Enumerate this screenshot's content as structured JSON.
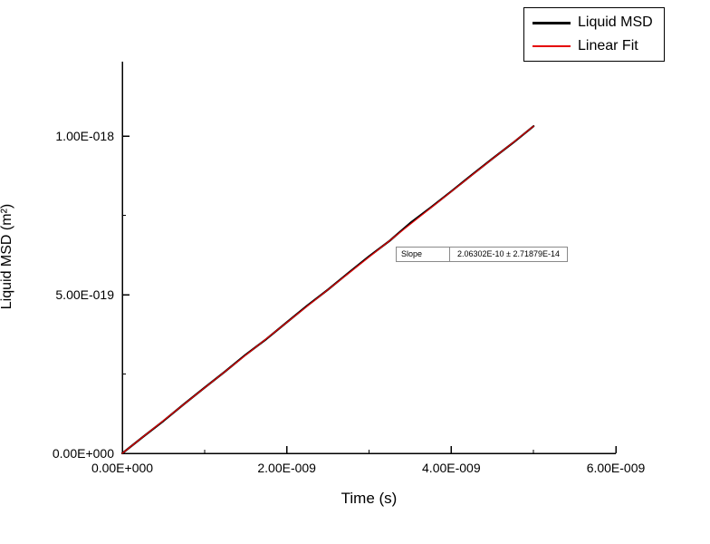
{
  "chart_data": {
    "type": "line",
    "title": "",
    "xlabel": "Time (s)",
    "ylabel": "Liquid MSD (m²)",
    "xlim": [
      0,
      6e-09
    ],
    "ylim": [
      0,
      1.235e-18
    ],
    "grid": false,
    "legend_position": "top-right",
    "x_ticks": {
      "major_values": [
        0,
        2e-09,
        4e-09,
        6e-09
      ],
      "major_labels": [
        "0.00E+000",
        "2.00E-009",
        "4.00E-009",
        "6.00E-009"
      ],
      "minor_values": [
        1e-09,
        3e-09,
        5e-09
      ]
    },
    "y_ticks": {
      "major_values": [
        0,
        5e-19,
        1e-18
      ],
      "major_labels": [
        "0.00E+000",
        "5.00E-019",
        "1.00E-018"
      ],
      "minor_values": [
        2.5e-19,
        7.5e-19
      ]
    },
    "series": [
      {
        "name": "Liquid MSD",
        "color": "#000000",
        "width": 2.2,
        "points": [
          [
            0,
            0
          ],
          [
            2.5e-10,
            5.15e-20
          ],
          [
            5e-10,
            1.02e-19
          ],
          [
            7.5e-10,
            1.55e-19
          ],
          [
            1e-09,
            2.07e-19
          ],
          [
            1.25e-09,
            2.58e-19
          ],
          [
            1.5e-09,
            3.11e-19
          ],
          [
            1.75e-09,
            3.6e-19
          ],
          [
            2e-09,
            4.13e-19
          ],
          [
            2.25e-09,
            4.66e-19
          ],
          [
            2.5e-09,
            5.16e-19
          ],
          [
            2.75e-09,
            5.69e-19
          ],
          [
            3e-09,
            6.21e-19
          ],
          [
            3.25e-09,
            6.7e-19
          ],
          [
            3.5e-09,
            7.26e-19
          ],
          [
            3.75e-09,
            7.75e-19
          ],
          [
            4e-09,
            8.26e-19
          ],
          [
            4.25e-09,
            8.78e-19
          ],
          [
            4.5e-09,
            9.29e-19
          ],
          [
            4.75e-09,
            9.79e-19
          ],
          [
            5e-09,
            1.0315e-18
          ]
        ]
      },
      {
        "name": "Linear Fit",
        "color": "#e50000",
        "width": 1.2,
        "points": [
          [
            0,
            0
          ],
          [
            5e-09,
            1.03151e-18
          ]
        ]
      }
    ],
    "annotation": {
      "label": "Slope",
      "value": "2.06302E-10 ± 2.71879E-14"
    }
  }
}
